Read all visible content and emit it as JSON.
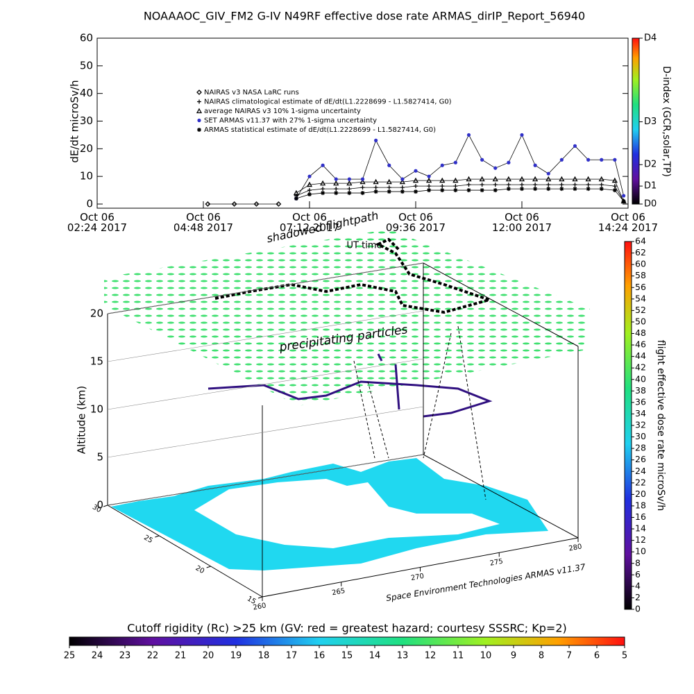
{
  "chart_data": [
    {
      "type": "line",
      "title": "NOAAAOC_GIV_FM2 G-IV    N49RF   effective dose rate ARMAS_dirIP_Report_56940",
      "ylabel": "dE/dt microSv/h",
      "xlim": [
        2.4,
        14.4
      ],
      "xticks": [
        {
          "value": 2.4,
          "label": "Oct 06\n02:24 2017"
        },
        {
          "value": 4.8,
          "label": "Oct 06\n04:48 2017"
        },
        {
          "value": 7.2,
          "label": "Oct 06\n07:12 2017"
        },
        {
          "value": 9.6,
          "label": "Oct 06\n09:36 2017"
        },
        {
          "value": 12,
          "label": "Oct 06\n12:00 2017"
        },
        {
          "value": 14.4,
          "label": "Oct 06\n14:24 2017"
        }
      ],
      "ylim": [
        0,
        60
      ],
      "yticks": [
        0,
        10,
        20,
        30,
        40,
        50,
        60
      ],
      "x": [
        4.9,
        5.5,
        6.0,
        6.5,
        6.9,
        7.2,
        7.5,
        7.8,
        8.1,
        8.4,
        8.7,
        9.0,
        9.3,
        9.6,
        9.9,
        10.2,
        10.5,
        10.8,
        11.1,
        11.4,
        11.7,
        12.0,
        12.3,
        12.6,
        12.9,
        13.2,
        13.5,
        13.8,
        14.1,
        14.3
      ],
      "series": [
        {
          "name": "NAIRAS v3 NASA LaRC runs",
          "color": "#000000",
          "marker": "diamond",
          "values": [
            0,
            0,
            0,
            0,
            null,
            null,
            null,
            null,
            null,
            null,
            null,
            null,
            null,
            null,
            null,
            null,
            null,
            null,
            null,
            null,
            null,
            null,
            null,
            null,
            null,
            null,
            null,
            null,
            null,
            null
          ]
        },
        {
          "name": "NAIRAS climatological estimate of dE/dt(L1.2228699 - L1.5827414, G0)",
          "color": "#000000",
          "marker": "plus",
          "values": [
            null,
            null,
            null,
            null,
            3,
            5,
            5.5,
            5.5,
            5.5,
            6,
            6,
            6,
            6,
            6.5,
            6.5,
            6.5,
            6.5,
            7,
            7,
            7,
            7,
            7,
            7,
            7,
            7,
            7,
            7,
            7,
            6.5,
            1
          ]
        },
        {
          "name": "average NAIRAS v3 10% 1-sigma uncertainty",
          "color": "#000000",
          "marker": "triangle",
          "values": [
            null,
            null,
            null,
            null,
            4,
            7,
            7.5,
            7.5,
            7.5,
            8,
            8,
            8,
            8,
            8.5,
            8.5,
            8.5,
            8.5,
            9,
            9,
            9,
            9,
            9,
            9,
            9,
            9,
            9,
            9,
            9,
            8.5,
            1
          ]
        },
        {
          "name": "SET ARMAS v11.37 with 27% 1-sigma uncertainty",
          "color": "#3030c8",
          "marker": "dot",
          "values": [
            null,
            null,
            null,
            null,
            2,
            10,
            14,
            9,
            9,
            9,
            23,
            14,
            9,
            12,
            10,
            14,
            15,
            25,
            16,
            13,
            15,
            25,
            14,
            11,
            16,
            21,
            16,
            16,
            16,
            3
          ]
        },
        {
          "name": "ARMAS statistical estimate of dE/dt(L1.2228699 - L1.5827414, G0)",
          "color": "#000000",
          "marker": "star",
          "values": [
            null,
            null,
            null,
            null,
            2,
            3.5,
            4,
            4,
            4,
            4,
            4.5,
            4.5,
            4.5,
            4.5,
            5,
            5,
            5,
            5,
            5,
            5,
            5.5,
            5.5,
            5.5,
            5.5,
            5.5,
            5.5,
            5.5,
            5.5,
            5,
            1
          ]
        }
      ],
      "y2label": "D-index (GCR,solar,TP)",
      "y2lim": [
        0,
        60
      ],
      "y2ticks": [
        {
          "value": 0,
          "label": "D0"
        },
        {
          "value": 6.5,
          "label": "D1"
        },
        {
          "value": 14.25,
          "label": "D2"
        },
        {
          "value": 29.75,
          "label": "D3"
        },
        {
          "value": 60,
          "label": "D4"
        }
      ]
    },
    {
      "type": "map3d",
      "labels": [
        "shadowed flightpath",
        "UT time",
        "precipitating particles"
      ],
      "zlabel": "Altitude (km)",
      "zlim": [
        0,
        20
      ],
      "zticks": [
        0,
        5,
        10,
        15,
        20
      ],
      "ylim": [
        30,
        15
      ],
      "yticks": [
        30,
        25,
        20,
        15
      ],
      "xlim": [
        260,
        280
      ],
      "xticks": [
        260,
        265,
        270,
        275,
        280
      ],
      "credit": "Space Environment Technologies ARMAS v11.37",
      "colorbar": {
        "label": "flight effective dose rate microSv/h",
        "lim": [
          0,
          64
        ],
        "ticks": [
          0,
          2,
          4,
          6,
          8,
          10,
          12,
          14,
          16,
          18,
          20,
          22,
          24,
          26,
          28,
          30,
          32,
          34,
          36,
          38,
          40,
          42,
          44,
          46,
          48,
          50,
          52,
          54,
          56,
          58,
          60,
          62,
          64
        ]
      }
    },
    {
      "type": "colorbar",
      "title": "Cutoff rigidity (Rc) >25 km (GV: red = greatest hazard; courtesy SSSRC; Kp=2)",
      "lim": [
        25,
        5
      ],
      "ticks": [
        25,
        24,
        23,
        22,
        21,
        20,
        19,
        18,
        17,
        16,
        15,
        14,
        13,
        12,
        11,
        10,
        9,
        8,
        7,
        6,
        5
      ]
    }
  ]
}
